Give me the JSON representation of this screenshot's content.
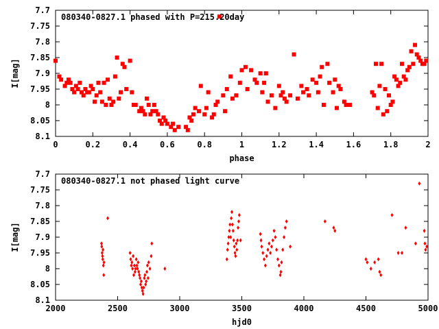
{
  "chart_data": [
    {
      "type": "scatter",
      "title": "080340-0827.1 phased with P=215.20day",
      "xlabel": "phase",
      "ylabel": "I[mag]",
      "xlim": [
        0,
        2
      ],
      "ylim": [
        8.1,
        7.7
      ],
      "y_inverted": true,
      "xticks": [
        "0",
        "0.2",
        "0.4",
        "0.6",
        "0.8",
        "1",
        "1.2",
        "1.4",
        "1.6",
        "1.8",
        "2"
      ],
      "yticks": [
        "7.7",
        "7.75",
        "7.8",
        "7.85",
        "7.9",
        "7.95",
        "8",
        "8.05",
        "8.1"
      ],
      "marker_color": "#ff0000",
      "points": [
        [
          0.0,
          7.86
        ],
        [
          0.02,
          7.91
        ],
        [
          0.03,
          7.92
        ],
        [
          0.05,
          7.94
        ],
        [
          0.06,
          7.93
        ],
        [
          0.07,
          7.92
        ],
        [
          0.08,
          7.93
        ],
        [
          0.09,
          7.95
        ],
        [
          0.1,
          7.96
        ],
        [
          0.11,
          7.94
        ],
        [
          0.12,
          7.95
        ],
        [
          0.13,
          7.93
        ],
        [
          0.14,
          7.96
        ],
        [
          0.15,
          7.97
        ],
        [
          0.16,
          7.95
        ],
        [
          0.17,
          7.96
        ],
        [
          0.18,
          7.96
        ],
        [
          0.19,
          7.94
        ],
        [
          0.2,
          7.95
        ],
        [
          0.21,
          7.99
        ],
        [
          0.22,
          7.97
        ],
        [
          0.23,
          7.93
        ],
        [
          0.24,
          7.96
        ],
        [
          0.25,
          7.99
        ],
        [
          0.26,
          7.93
        ],
        [
          0.27,
          8.0
        ],
        [
          0.28,
          7.92
        ],
        [
          0.29,
          7.98
        ],
        [
          0.3,
          8.0
        ],
        [
          0.31,
          7.99
        ],
        [
          0.32,
          7.91
        ],
        [
          0.33,
          7.85
        ],
        [
          0.34,
          7.98
        ],
        [
          0.35,
          7.96
        ],
        [
          0.36,
          7.87
        ],
        [
          0.37,
          7.88
        ],
        [
          0.38,
          7.95
        ],
        [
          0.4,
          7.86
        ],
        [
          0.41,
          7.96
        ],
        [
          0.42,
          8.0
        ],
        [
          0.43,
          8.0
        ],
        [
          0.45,
          8.02
        ],
        [
          0.46,
          8.01
        ],
        [
          0.47,
          8.02
        ],
        [
          0.48,
          8.03
        ],
        [
          0.49,
          7.98
        ],
        [
          0.5,
          8.0
        ],
        [
          0.51,
          8.03
        ],
        [
          0.52,
          8.02
        ],
        [
          0.53,
          8.0
        ],
        [
          0.54,
          8.02
        ],
        [
          0.55,
          8.03
        ],
        [
          0.56,
          8.05
        ],
        [
          0.57,
          8.06
        ],
        [
          0.58,
          8.04
        ],
        [
          0.59,
          8.05
        ],
        [
          0.6,
          8.06
        ],
        [
          0.62,
          8.07
        ],
        [
          0.63,
          8.06
        ],
        [
          0.64,
          8.08
        ],
        [
          0.66,
          8.07
        ],
        [
          0.7,
          8.07
        ],
        [
          0.71,
          8.08
        ],
        [
          0.72,
          8.04
        ],
        [
          0.73,
          8.05
        ],
        [
          0.74,
          8.03
        ],
        [
          0.75,
          8.01
        ],
        [
          0.77,
          8.02
        ],
        [
          0.78,
          7.94
        ],
        [
          0.8,
          8.03
        ],
        [
          0.81,
          8.01
        ],
        [
          0.82,
          7.96
        ],
        [
          0.84,
          8.04
        ],
        [
          0.85,
          8.03
        ],
        [
          0.86,
          8.0
        ],
        [
          0.87,
          7.99
        ],
        [
          0.88,
          7.72
        ],
        [
          0.9,
          7.97
        ],
        [
          0.91,
          8.02
        ],
        [
          0.92,
          7.95
        ],
        [
          0.94,
          7.91
        ],
        [
          0.95,
          7.98
        ],
        [
          0.97,
          7.97
        ],
        [
          0.99,
          7.93
        ],
        [
          1.0,
          7.89
        ],
        [
          1.02,
          7.88
        ],
        [
          1.03,
          7.95
        ],
        [
          1.05,
          7.89
        ],
        [
          1.07,
          7.92
        ],
        [
          1.08,
          7.93
        ],
        [
          1.1,
          7.9
        ],
        [
          1.11,
          7.96
        ],
        [
          1.12,
          7.93
        ],
        [
          1.13,
          7.9
        ],
        [
          1.14,
          7.99
        ],
        [
          1.16,
          7.97
        ],
        [
          1.18,
          8.01
        ],
        [
          1.2,
          7.94
        ],
        [
          1.21,
          7.97
        ],
        [
          1.22,
          7.96
        ],
        [
          1.23,
          7.98
        ],
        [
          1.24,
          7.99
        ],
        [
          1.26,
          7.97
        ],
        [
          1.28,
          7.84
        ],
        [
          1.3,
          7.98
        ],
        [
          1.32,
          7.94
        ],
        [
          1.33,
          7.96
        ],
        [
          1.35,
          7.95
        ],
        [
          1.36,
          7.97
        ],
        [
          1.38,
          7.92
        ],
        [
          1.4,
          7.93
        ],
        [
          1.41,
          7.96
        ],
        [
          1.42,
          7.91
        ],
        [
          1.43,
          7.88
        ],
        [
          1.44,
          8.0
        ],
        [
          1.46,
          7.87
        ],
        [
          1.47,
          7.93
        ],
        [
          1.49,
          7.96
        ],
        [
          1.5,
          7.92
        ],
        [
          1.51,
          8.01
        ],
        [
          1.52,
          7.94
        ],
        [
          1.53,
          7.95
        ],
        [
          1.55,
          7.99
        ],
        [
          1.56,
          8.0
        ],
        [
          1.58,
          8.0
        ],
        [
          1.7,
          7.96
        ],
        [
          1.71,
          7.97
        ],
        [
          1.72,
          7.87
        ],
        [
          1.73,
          8.01
        ],
        [
          1.74,
          7.94
        ],
        [
          1.75,
          7.87
        ],
        [
          1.76,
          8.03
        ],
        [
          1.77,
          7.95
        ],
        [
          1.78,
          8.02
        ],
        [
          1.79,
          7.97
        ],
        [
          1.8,
          8.0
        ],
        [
          1.81,
          7.99
        ],
        [
          1.82,
          7.91
        ],
        [
          1.83,
          7.92
        ],
        [
          1.84,
          7.94
        ],
        [
          1.85,
          7.93
        ],
        [
          1.86,
          7.87
        ],
        [
          1.87,
          7.91
        ],
        [
          1.88,
          7.92
        ],
        [
          1.89,
          7.89
        ],
        [
          1.9,
          7.88
        ],
        [
          1.91,
          7.83
        ],
        [
          1.92,
          7.87
        ],
        [
          1.93,
          7.81
        ],
        [
          1.94,
          7.84
        ],
        [
          1.95,
          7.85
        ],
        [
          1.96,
          7.86
        ],
        [
          1.97,
          7.87
        ],
        [
          1.98,
          7.87
        ],
        [
          1.99,
          7.86
        ]
      ]
    },
    {
      "type": "scatter",
      "title": "080340-0827.1 not phased light curve",
      "xlabel": "hjd0",
      "ylabel": "I[mag]",
      "xlim": [
        2000,
        5000
      ],
      "ylim": [
        8.1,
        7.7
      ],
      "y_inverted": true,
      "xticks": [
        "2000",
        "2500",
        "3000",
        "3500",
        "4000",
        "4500",
        "5000"
      ],
      "yticks": [
        "7.7",
        "7.75",
        "7.8",
        "7.85",
        "7.9",
        "7.95",
        "8",
        "8.05",
        "8.1"
      ],
      "marker_color": "#ff0000",
      "points": [
        [
          2370,
          7.92
        ],
        [
          2372,
          7.93
        ],
        [
          2375,
          7.95
        ],
        [
          2378,
          7.96
        ],
        [
          2380,
          7.97
        ],
        [
          2382,
          7.94
        ],
        [
          2385,
          7.99
        ],
        [
          2388,
          8.02
        ],
        [
          2390,
          7.98
        ],
        [
          2420,
          7.84
        ],
        [
          2600,
          7.95
        ],
        [
          2605,
          7.97
        ],
        [
          2610,
          7.99
        ],
        [
          2615,
          7.98
        ],
        [
          2620,
          8.0
        ],
        [
          2625,
          7.96
        ],
        [
          2630,
          8.02
        ],
        [
          2635,
          7.99
        ],
        [
          2640,
          8.01
        ],
        [
          2645,
          8.0
        ],
        [
          2650,
          7.97
        ],
        [
          2655,
          7.99
        ],
        [
          2660,
          8.0
        ],
        [
          2665,
          7.98
        ],
        [
          2670,
          8.01
        ],
        [
          2675,
          8.02
        ],
        [
          2680,
          8.03
        ],
        [
          2685,
          8.05
        ],
        [
          2690,
          8.04
        ],
        [
          2695,
          8.06
        ],
        [
          2700,
          8.07
        ],
        [
          2705,
          8.08
        ],
        [
          2710,
          8.06
        ],
        [
          2715,
          8.03
        ],
        [
          2720,
          8.02
        ],
        [
          2725,
          8.05
        ],
        [
          2730,
          8.04
        ],
        [
          2735,
          8.01
        ],
        [
          2740,
          7.99
        ],
        [
          2745,
          8.03
        ],
        [
          2750,
          7.98
        ],
        [
          2760,
          8.0
        ],
        [
          2770,
          7.96
        ],
        [
          2775,
          7.92
        ],
        [
          2880,
          8.0
        ],
        [
          3380,
          7.97
        ],
        [
          3385,
          7.94
        ],
        [
          3390,
          7.92
        ],
        [
          3395,
          7.9
        ],
        [
          3400,
          7.88
        ],
        [
          3405,
          7.86
        ],
        [
          3410,
          7.9
        ],
        [
          3415,
          7.84
        ],
        [
          3420,
          7.82
        ],
        [
          3425,
          7.86
        ],
        [
          3430,
          7.88
        ],
        [
          3435,
          7.91
        ],
        [
          3440,
          7.93
        ],
        [
          3445,
          7.95
        ],
        [
          3450,
          7.96
        ],
        [
          3455,
          7.92
        ],
        [
          3460,
          7.94
        ],
        [
          3465,
          7.91
        ],
        [
          3470,
          7.87
        ],
        [
          3475,
          7.85
        ],
        [
          3480,
          7.83
        ],
        [
          3490,
          7.91
        ],
        [
          3650,
          7.89
        ],
        [
          3655,
          7.91
        ],
        [
          3660,
          7.93
        ],
        [
          3670,
          7.95
        ],
        [
          3680,
          7.97
        ],
        [
          3690,
          7.99
        ],
        [
          3700,
          7.96
        ],
        [
          3710,
          7.94
        ],
        [
          3720,
          7.92
        ],
        [
          3730,
          7.95
        ],
        [
          3740,
          7.93
        ],
        [
          3750,
          7.91
        ],
        [
          3760,
          7.88
        ],
        [
          3770,
          7.9
        ],
        [
          3780,
          7.94
        ],
        [
          3790,
          7.97
        ],
        [
          3800,
          7.99
        ],
        [
          3810,
          8.02
        ],
        [
          3815,
          8.01
        ],
        [
          3820,
          7.98
        ],
        [
          3830,
          7.94
        ],
        [
          3840,
          7.9
        ],
        [
          3850,
          7.87
        ],
        [
          3860,
          7.85
        ],
        [
          3890,
          7.93
        ],
        [
          4170,
          7.85
        ],
        [
          4240,
          7.87
        ],
        [
          4250,
          7.88
        ],
        [
          4500,
          7.97
        ],
        [
          4510,
          7.98
        ],
        [
          4540,
          8.0
        ],
        [
          4570,
          7.98
        ],
        [
          4600,
          7.97
        ],
        [
          4610,
          8.01
        ],
        [
          4620,
          8.02
        ],
        [
          4710,
          7.83
        ],
        [
          4760,
          7.95
        ],
        [
          4790,
          7.95
        ],
        [
          4820,
          7.87
        ],
        [
          4900,
          7.92
        ],
        [
          4930,
          7.73
        ],
        [
          4970,
          7.88
        ],
        [
          4975,
          7.92
        ],
        [
          4980,
          7.94
        ],
        [
          4990,
          7.93
        ]
      ]
    }
  ]
}
